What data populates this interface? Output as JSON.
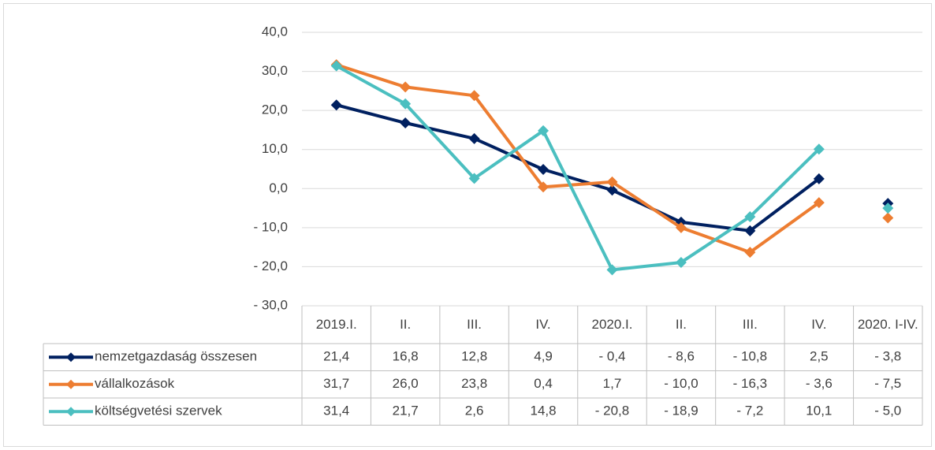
{
  "chart_data": {
    "type": "line",
    "categories": [
      "2019.I.",
      "II.",
      "III.",
      "IV.",
      "2020.I.",
      "II.",
      "III.",
      "IV.",
      "2020. I-IV."
    ],
    "unconnected_categories": [
      8
    ],
    "ylim": [
      -30,
      40
    ],
    "yticks": [
      {
        "value": -30,
        "label": "- 30,0"
      },
      {
        "value": -20,
        "label": "- 20,0"
      },
      {
        "value": -10,
        "label": "- 10,0"
      },
      {
        "value": 0,
        "label": "0,0"
      },
      {
        "value": 10,
        "label": "10,0"
      },
      {
        "value": 20,
        "label": "20,0"
      },
      {
        "value": 30,
        "label": "30,0"
      },
      {
        "value": 40,
        "label": "40,0"
      }
    ],
    "grid": true,
    "data_table": true,
    "series": [
      {
        "name": "nemzetgazdaság összesen",
        "color": "#002060",
        "values": [
          21.4,
          16.8,
          12.8,
          4.9,
          -0.4,
          -8.6,
          -10.8,
          2.5,
          -3.8
        ],
        "value_labels": [
          "21,4",
          "16,8",
          "12,8",
          "4,9",
          "- 0,4",
          "- 8,6",
          "- 10,8",
          "2,5",
          "- 3,8"
        ]
      },
      {
        "name": "vállalkozások",
        "color": "#ed7d31",
        "values": [
          31.7,
          26.0,
          23.8,
          0.4,
          1.7,
          -10.0,
          -16.3,
          -3.6,
          -7.5
        ],
        "value_labels": [
          "31,7",
          "26,0",
          "23,8",
          "0,4",
          "1,7",
          "- 10,0",
          "- 16,3",
          "- 3,6",
          "- 7,5"
        ]
      },
      {
        "name": "költségvetési szervek",
        "color": "#4bbfc0",
        "values": [
          31.4,
          21.7,
          2.6,
          14.8,
          -20.8,
          -18.9,
          -7.2,
          10.1,
          -5.0
        ],
        "value_labels": [
          "31,4",
          "21,7",
          "2,6",
          "14,8",
          "- 20,8",
          "- 18,9",
          "- 7,2",
          "10,1",
          "- 5,0"
        ]
      }
    ]
  }
}
